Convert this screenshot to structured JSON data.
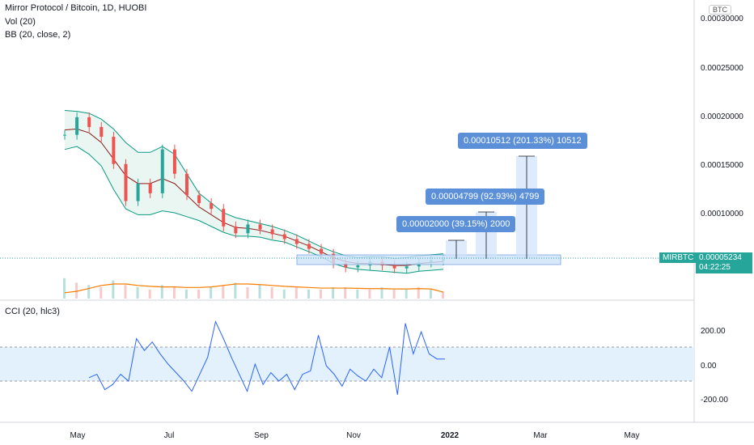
{
  "header": {
    "title": "Mirror Protocol / Bitcoin, 1D, HUOBI",
    "vol_indicator": "Vol (20)",
    "bb_indicator": "BB (20, close, 2)",
    "cci_indicator": "CCI (20, hlc3)",
    "currency_badge": "BTC"
  },
  "price_axis": {
    "ticks": [
      "0.00030000",
      "0.00025000",
      "0.00020000",
      "0.00015000",
      "0.00010000"
    ],
    "symbol_tag": "MIRBTC",
    "last_price": "0.00005234",
    "countdown": "04:22:25"
  },
  "cci_axis": {
    "ticks": [
      "200.00",
      "0.00",
      "-200.00"
    ]
  },
  "time_axis": {
    "ticks": [
      "May",
      "Jul",
      "Sep",
      "Nov",
      "2022",
      "Mar",
      "May"
    ]
  },
  "measurements": [
    {
      "label": "0.00002000 (39.15%) 2000"
    },
    {
      "label": "0.00004799 (92.93%) 4799"
    },
    {
      "label": "0.00010512 (201.33%) 10512"
    }
  ],
  "colors": {
    "up": "#26a69a",
    "down": "#ef5350",
    "bb_band": "#089981",
    "bb_basis": "#8b1a1a",
    "volume_ma": "#f57c00",
    "cci_line": "#2962ff",
    "measure": "#5b8fd8"
  },
  "chart_data": {
    "type": "line",
    "symbol": "MIRBTC",
    "price_range": [
      3e-05,
      0.00031
    ],
    "cci_range": [
      -280,
      300
    ],
    "x": [
      "2021-04-28",
      "2021-05-06",
      "2021-05-14",
      "2021-05-22",
      "2021-05-30",
      "2021-06-07",
      "2021-06-15",
      "2021-06-23",
      "2021-07-01",
      "2021-07-09",
      "2021-07-17",
      "2021-07-25",
      "2021-08-02",
      "2021-08-10",
      "2021-08-18",
      "2021-08-26",
      "2021-09-03",
      "2021-09-11",
      "2021-09-19",
      "2021-09-27",
      "2021-10-05",
      "2021-10-13",
      "2021-10-21",
      "2021-10-29",
      "2021-11-06",
      "2021-11-14",
      "2021-11-22",
      "2021-11-30",
      "2021-12-08",
      "2021-12-16",
      "2021-12-24",
      "2021-12-30"
    ],
    "series": [
      {
        "name": "MIRBTC",
        "values": [
          0.00018,
          0.000198,
          0.000188,
          0.000178,
          0.00015,
          0.000112,
          0.00013,
          0.00012,
          0.000165,
          0.00014,
          0.000118,
          0.00011,
          0.000104,
          8.6e-05,
          7.9e-05,
          8.8e-05,
          8.3e-05,
          7.8e-05,
          7.3e-05,
          6.8e-05,
          6.3e-05,
          5.8e-05,
          4.8e-05,
          4.4e-05,
          4.6e-05,
          5e-05,
          4.6e-05,
          4.3e-05,
          4.5e-05,
          4.9e-05,
          5.1e-05,
          5.234e-05
        ]
      }
    ],
    "bb_upper": [
      0.000205,
      0.000204,
      0.000202,
      0.000196,
      0.000186,
      0.000172,
      0.000162,
      0.000162,
      0.000168,
      0.00016,
      0.00014,
      0.00012,
      0.00011,
      0.0001,
      9.5e-05,
      9.2e-05,
      8.9e-05,
      8.6e-05,
      8.2e-05,
      7.7e-05,
      7.1e-05,
      6.5e-05,
      6e-05,
      5.6e-05,
      5.4e-05,
      5.5e-05,
      5.5e-05,
      5.3e-05,
      5.4e-05,
      5.6e-05,
      5.7e-05,
      5.8e-05
    ],
    "bb_basis": [
      0.000185,
      0.000186,
      0.000182,
      0.000172,
      0.000155,
      0.000138,
      0.00013,
      0.00013,
      0.000135,
      0.00013,
      0.000118,
      0.000106,
      9.8e-05,
      9e-05,
      8.5e-05,
      8.4e-05,
      8.2e-05,
      7.9e-05,
      7.6e-05,
      7.1e-05,
      6.6e-05,
      6e-05,
      5.4e-05,
      5e-05,
      4.8e-05,
      4.8e-05,
      4.7e-05,
      4.6e-05,
      4.6e-05,
      4.8e-05,
      4.9e-05,
      5e-05
    ],
    "bb_lower": [
      0.000165,
      0.000168,
      0.00016,
      0.000148,
      0.000124,
      0.000104,
      9.8e-05,
      9.8e-05,
      0.000102,
      0.0001,
      9.6e-05,
      9.2e-05,
      8.6e-05,
      8e-05,
      7.6e-05,
      7.6e-05,
      7.5e-05,
      7.2e-05,
      7e-05,
      6.5e-05,
      6e-05,
      5.5e-05,
      4.8e-05,
      4.4e-05,
      4.2e-05,
      4.1e-05,
      4e-05,
      3.9e-05,
      3.8e-05,
      4e-05,
      4.1e-05,
      4.2e-05
    ],
    "volume": [
      0.9,
      0.7,
      0.6,
      0.5,
      0.8,
      0.6,
      0.5,
      0.4,
      0.6,
      0.5,
      0.4,
      0.4,
      0.5,
      0.6,
      0.7,
      0.5,
      0.6,
      0.5,
      0.4,
      0.5,
      0.4,
      0.4,
      0.5,
      0.5,
      0.4,
      0.4,
      0.5,
      0.4,
      0.4,
      0.5,
      0.4,
      0.3
    ],
    "volume_ma": [
      0.2,
      0.25,
      0.35,
      0.45,
      0.5,
      0.5,
      0.45,
      0.42,
      0.4,
      0.4,
      0.38,
      0.38,
      0.4,
      0.45,
      0.5,
      0.5,
      0.48,
      0.45,
      0.42,
      0.4,
      0.38,
      0.36,
      0.36,
      0.36,
      0.35,
      0.34,
      0.34,
      0.33,
      0.33,
      0.34,
      0.33,
      0.22
    ],
    "cci": [
      -80,
      -60,
      -150,
      -120,
      -60,
      -100,
      150,
      80,
      130,
      60,
      0,
      -50,
      -100,
      -160,
      -60,
      40,
      250,
      150,
      40,
      -60,
      -160,
      0,
      -120,
      -50,
      -100,
      -60,
      -150,
      -60,
      -40,
      170,
      -10,
      -60,
      -130,
      -30,
      -70,
      -100,
      -30,
      -80,
      100,
      -180,
      240,
      60,
      190,
      60,
      30,
      30
    ],
    "cci_x_span": [
      0,
      1
    ]
  }
}
